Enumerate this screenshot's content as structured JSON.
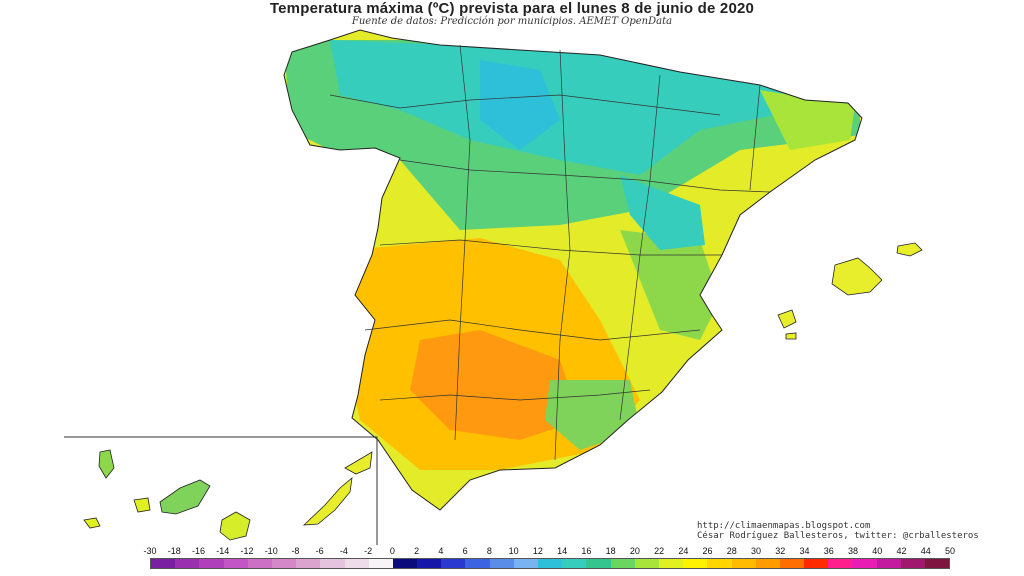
{
  "title": "Temperatura máxima (ºC) prevista para el lunes 8 de junio de 2020",
  "subtitle": "Fuente de datos: Predicción por municipios. AEMET OpenData",
  "credits": {
    "url": "http://climaenmapas.blogspot.com",
    "author": "César Rodríguez Ballesteros, twitter: @crballesteros"
  },
  "legend": {
    "labels": [
      "-30",
      "-18",
      "-16",
      "-14",
      "-12",
      "-10",
      "-8",
      "-6",
      "-4",
      "-2",
      "0",
      "2",
      "4",
      "6",
      "8",
      "10",
      "12",
      "14",
      "16",
      "18",
      "20",
      "22",
      "24",
      "26",
      "28",
      "30",
      "32",
      "34",
      "36",
      "38",
      "40",
      "42",
      "44",
      "50"
    ],
    "colors": [
      "#7a1fa2",
      "#9a2fb0",
      "#b03fbb",
      "#c455c4",
      "#cc70c6",
      "#d488c8",
      "#dba4cf",
      "#e5c2dd",
      "#efdcea",
      "#f8f3f6",
      "#0b0b7a",
      "#1616a8",
      "#2a3ad0",
      "#3c64e0",
      "#5a8de8",
      "#7ab4f0",
      "#2ec0d8",
      "#36cdbd",
      "#34c48e",
      "#6ad660",
      "#a8e43a",
      "#e0f020",
      "#fff200",
      "#ffd600",
      "#ffbb00",
      "#ff9c00",
      "#ff6e00",
      "#ff2a00",
      "#ff1e8c",
      "#e81eb4",
      "#c41aa0",
      "#a0186e",
      "#7e1440"
    ]
  },
  "map_legend": {
    "kind": "temperature-choropleth",
    "unit": "ºC"
  }
}
